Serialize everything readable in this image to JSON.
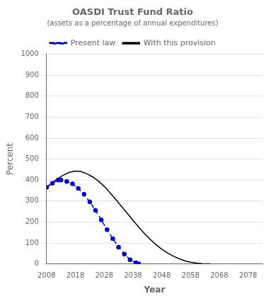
{
  "chart_data": {
    "type": "line",
    "title": "OASDI Trust Fund Ratio",
    "subtitle": "(assets as a percentage of annual expenditures)",
    "xlabel": "Year",
    "ylabel": "Percent",
    "xlim": [
      2008,
      2083
    ],
    "ylim": [
      0,
      1000
    ],
    "xticks": [
      2008,
      2018,
      2028,
      2038,
      2048,
      2058,
      2068,
      2078
    ],
    "yticks": [
      0,
      100,
      200,
      300,
      400,
      500,
      600,
      700,
      800,
      900,
      1000
    ],
    "grid": "y",
    "legend": "top",
    "series": [
      {
        "name": "Present law",
        "color": "#0000cc",
        "line_style": "dashed",
        "marker": "dot",
        "x": [
          2008,
          2010,
          2012,
          2013,
          2015,
          2017,
          2019,
          2021,
          2023,
          2025,
          2027,
          2029,
          2031,
          2033,
          2035,
          2037,
          2039,
          2040
        ],
        "values": [
          365,
          385,
          400,
          400,
          393,
          382,
          360,
          332,
          296,
          255,
          210,
          163,
          120,
          80,
          47,
          20,
          5,
          0
        ]
      },
      {
        "name": "With this provision",
        "color": "#000000",
        "line_style": "solid",
        "x": [
          2008,
          2010,
          2012,
          2014,
          2016,
          2018,
          2020,
          2022,
          2024,
          2026,
          2028,
          2030,
          2032,
          2034,
          2036,
          2038,
          2040,
          2042,
          2044,
          2046,
          2048,
          2050,
          2052,
          2054,
          2056,
          2058,
          2060,
          2062,
          2064,
          2065
        ],
        "values": [
          365,
          388,
          408,
          425,
          437,
          443,
          440,
          430,
          415,
          395,
          370,
          340,
          308,
          275,
          242,
          208,
          175,
          145,
          117,
          92,
          70,
          52,
          37,
          25,
          15,
          8,
          4,
          1,
          0.2,
          0
        ]
      }
    ]
  }
}
